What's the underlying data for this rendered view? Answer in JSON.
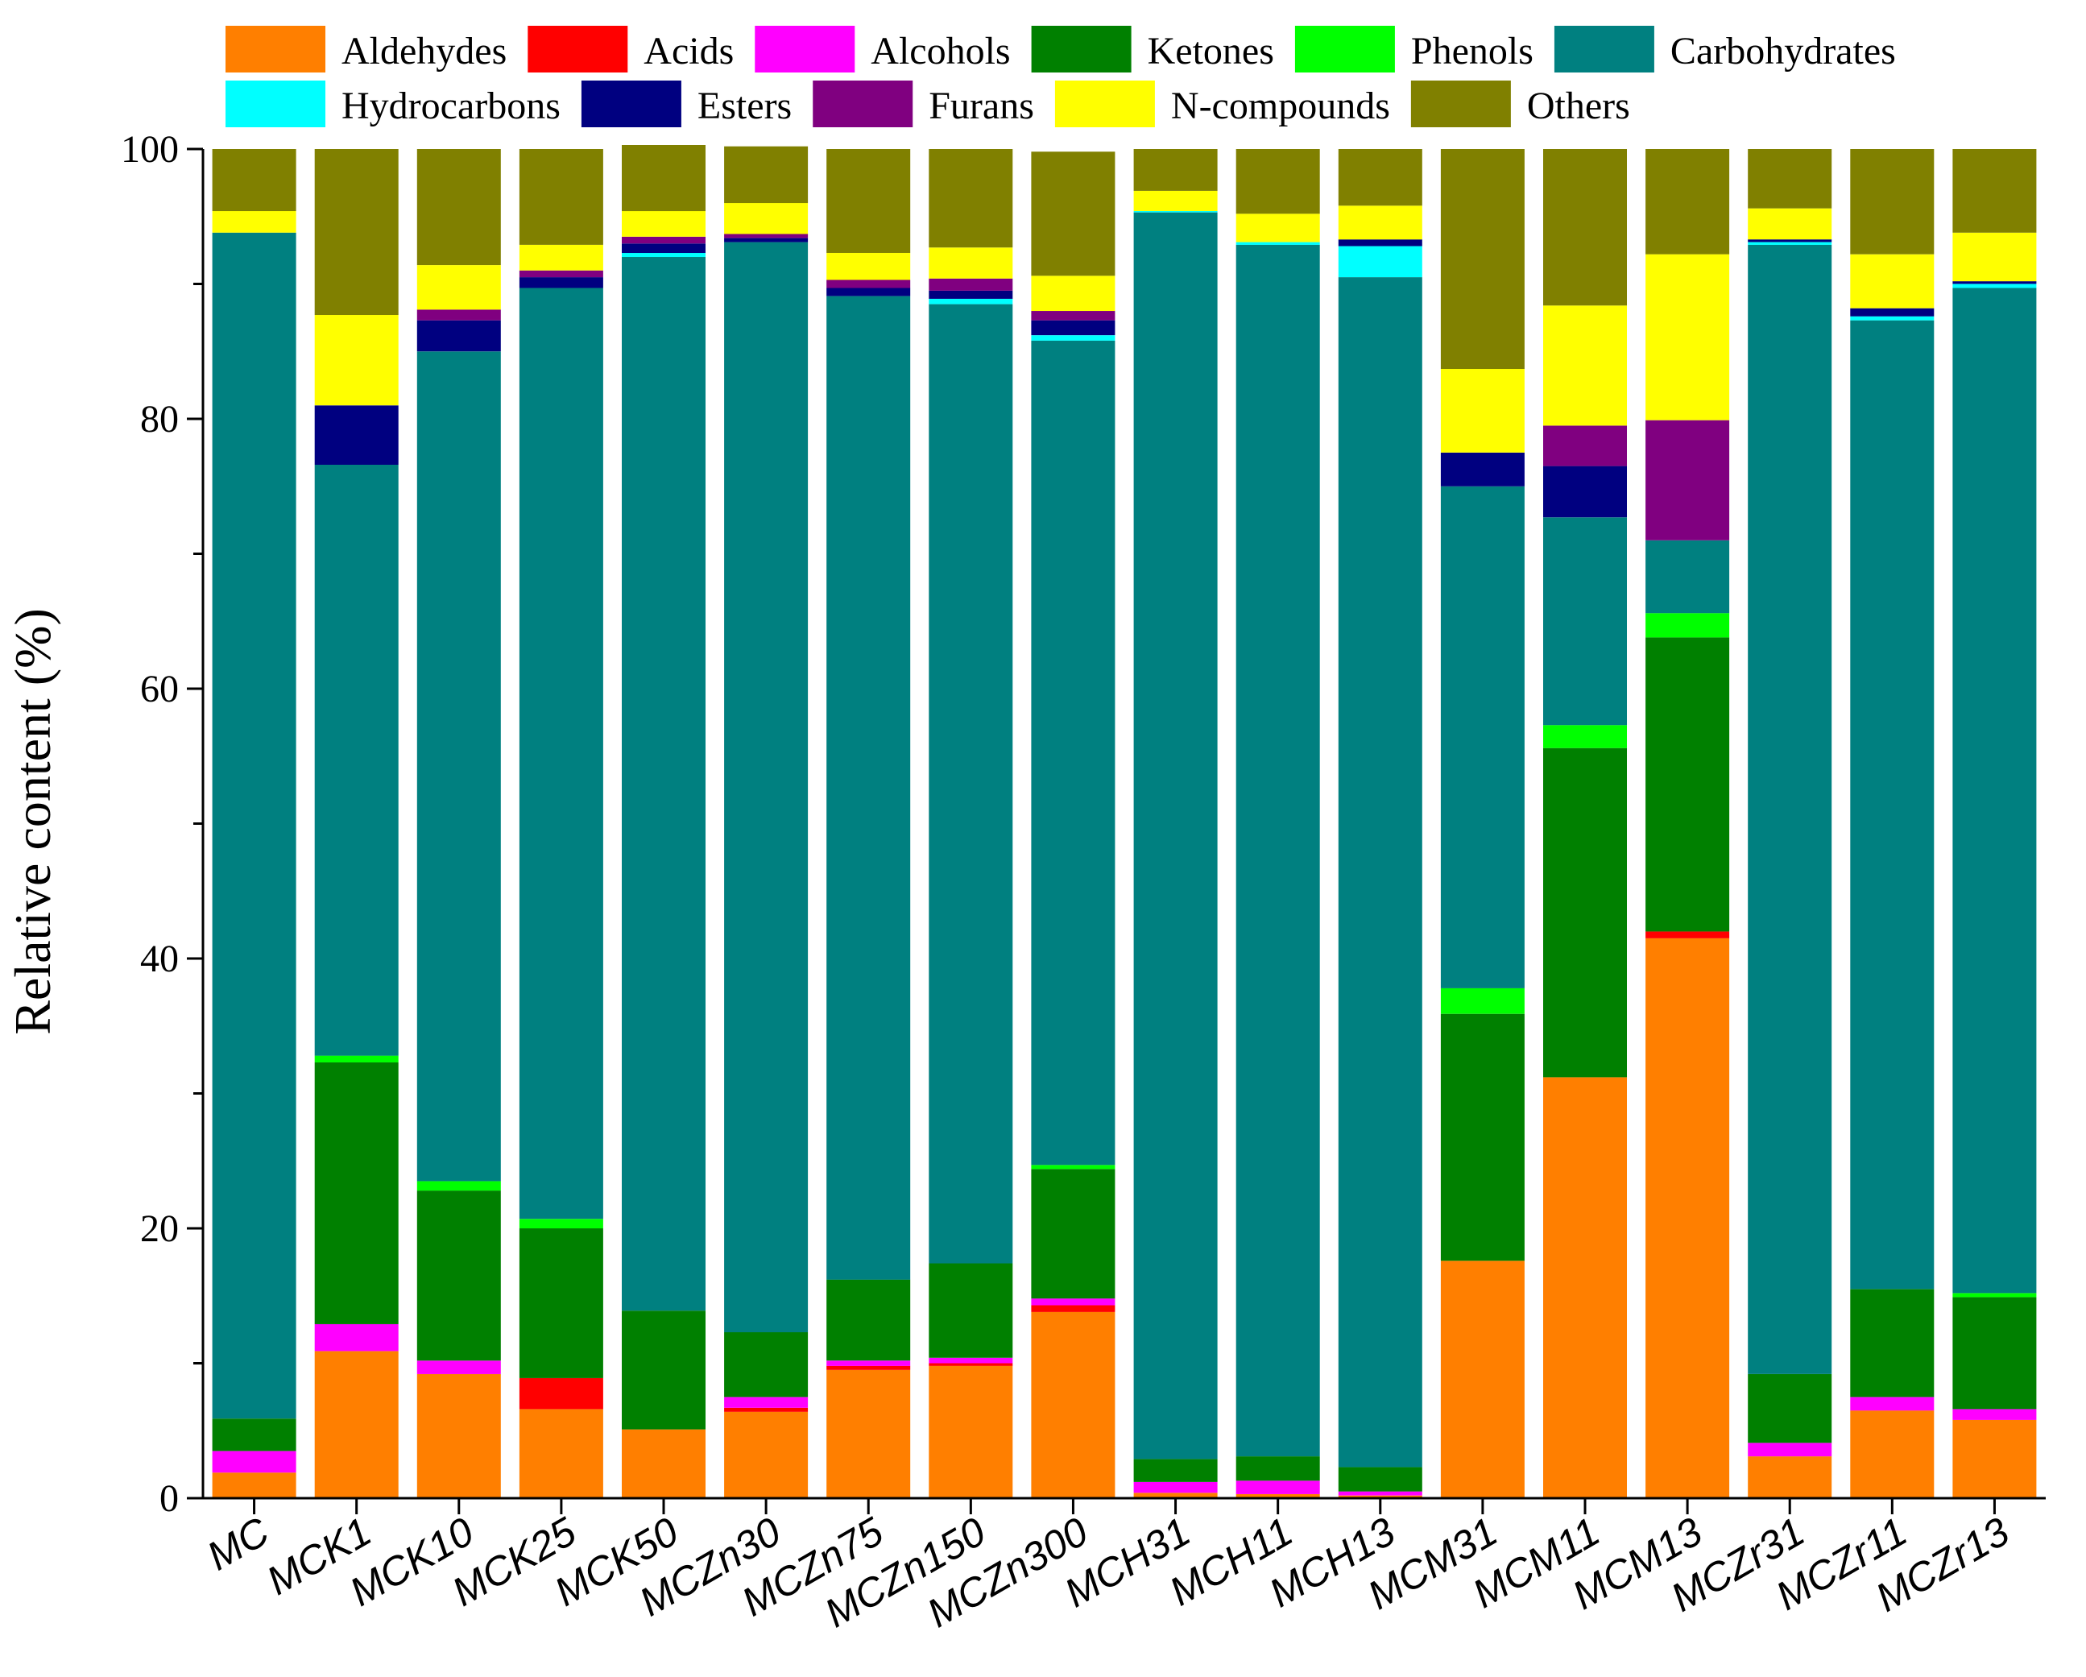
{
  "chart_data": {
    "type": "stacked-bar",
    "title": "",
    "xlabel": "",
    "ylabel": "Relative content (%)",
    "ylim": [
      0,
      100
    ],
    "yticks": [
      0,
      20,
      40,
      60,
      80,
      100
    ],
    "categories": [
      "MC",
      "MCK1",
      "MCK10",
      "MCK25",
      "MCK50",
      "MCZn30",
      "MCZn75",
      "MCZn150",
      "MCZn300",
      "MCH31",
      "MCH11",
      "MCH13",
      "MCM31",
      "MCM11",
      "MCM13",
      "MCZr31",
      "MCZr11",
      "MCZr13"
    ],
    "series": [
      {
        "name": "Aldehydes",
        "color": "#ff7f00",
        "values": [
          1.9,
          10.9,
          9.2,
          6.6,
          5.1,
          6.4,
          9.5,
          9.8,
          13.8,
          0.4,
          0.3,
          0.2,
          17.6,
          31.2,
          41.5,
          3.1,
          6.5,
          5.8
        ]
      },
      {
        "name": "Acids",
        "color": "#ff0000",
        "values": [
          0,
          0,
          0,
          2.3,
          0,
          0.3,
          0.3,
          0.2,
          0.5,
          0,
          0,
          0,
          0,
          0,
          0.5,
          0,
          0,
          0
        ]
      },
      {
        "name": "Alcohols",
        "color": "#ff00ff",
        "values": [
          1.6,
          2.0,
          1.0,
          0,
          0,
          0.8,
          0.4,
          0.4,
          0.5,
          0.8,
          1.0,
          0.3,
          0,
          0,
          0,
          1.0,
          1.0,
          0.8
        ]
      },
      {
        "name": "Ketones",
        "color": "#008000",
        "values": [
          2.4,
          19.4,
          12.6,
          11.1,
          8.8,
          4.8,
          6.0,
          7.0,
          9.6,
          1.7,
          1.8,
          1.8,
          18.3,
          24.4,
          21.8,
          5.1,
          8.0,
          8.3
        ]
      },
      {
        "name": "Phenols",
        "color": "#00ff00",
        "values": [
          0,
          0.5,
          0.7,
          0.7,
          0,
          0,
          0,
          0,
          0.3,
          0,
          0,
          0,
          1.9,
          1.7,
          1.8,
          0,
          0,
          0.3
        ]
      },
      {
        "name": "Carbohydrates",
        "color": "#008080",
        "values": [
          87.9,
          43.8,
          61.5,
          69.0,
          78.1,
          80.8,
          72.9,
          71.1,
          61.1,
          92.4,
          89.8,
          88.2,
          37.2,
          15.4,
          5.4,
          83.7,
          71.8,
          74.5
        ]
      },
      {
        "name": "Hydrocarbons",
        "color": "#00ffff",
        "values": [
          0,
          0,
          0,
          0,
          0.3,
          0,
          0,
          0.4,
          0.4,
          0.1,
          0.2,
          2.3,
          0,
          0,
          0,
          0.2,
          0.3,
          0.3
        ]
      },
      {
        "name": "Esters",
        "color": "#000080",
        "values": [
          0,
          4.4,
          2.3,
          0.8,
          0.7,
          0.3,
          0.6,
          0.6,
          1.1,
          0,
          0,
          0.5,
          2.5,
          3.8,
          0,
          0.2,
          0.6,
          0.2
        ]
      },
      {
        "name": "Furans",
        "color": "#800080",
        "values": [
          0,
          0,
          0.8,
          0.5,
          0.5,
          0.3,
          0.6,
          0.9,
          0.7,
          0,
          0,
          0,
          0,
          3.0,
          8.9,
          0,
          0,
          0
        ]
      },
      {
        "name": "N-compounds",
        "color": "#ffff00",
        "values": [
          1.6,
          6.7,
          3.3,
          1.9,
          1.9,
          2.3,
          2.0,
          2.3,
          2.6,
          1.5,
          2.1,
          2.5,
          6.2,
          8.9,
          12.3,
          2.3,
          4.0,
          3.6
        ]
      },
      {
        "name": "Others",
        "color": "#808000",
        "values": [
          4.6,
          12.3,
          8.6,
          7.1,
          4.9,
          4.2,
          7.7,
          7.3,
          9.2,
          3.1,
          4.8,
          4.2,
          16.3,
          11.6,
          7.8,
          4.4,
          7.8,
          6.2
        ]
      }
    ],
    "legend": {
      "placement": "top",
      "rows": 2
    }
  }
}
